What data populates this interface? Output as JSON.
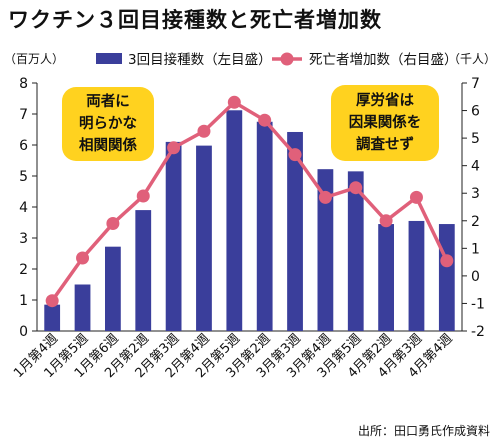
{
  "title": "ワクチン３回目接種数と死亡者増加数",
  "source": "出所：田口勇氏作成資料",
  "annotations": {
    "left": [
      "両者に",
      "明らかな",
      "相関関係"
    ],
    "right": [
      "厚労省は",
      "因果関係を",
      "調査せず"
    ]
  },
  "colors": {
    "bar": "#3a3e9b",
    "line": "#e0607a",
    "note_bg": "#ffd21f"
  },
  "chart_data": {
    "type": "bar",
    "categories": [
      "1月第4週",
      "1月第5週",
      "1月第6週",
      "2月第2週",
      "2月第3週",
      "2月第4週",
      "2月第5週",
      "3月第2週",
      "3月第3週",
      "3月第4週",
      "3月第5週",
      "4月第2週",
      "4月第3週",
      "4月第4週"
    ],
    "left_axis_unit": "（百万人）",
    "right_axis_unit": "（千人）",
    "y_left_lim": [
      0,
      8
    ],
    "y_left_ticks": [
      "0",
      "1",
      "2",
      "3",
      "4",
      "5",
      "6",
      "7",
      "8"
    ],
    "y_right_lim": [
      -2,
      7
    ],
    "y_right_ticks": [
      "-2",
      "-1",
      "0",
      "1",
      "2",
      "3",
      "4",
      "5",
      "6",
      "7"
    ],
    "grid": false,
    "legend_position": "top",
    "series": [
      {
        "name": "3回目接種数（左目盛）",
        "type": "bar",
        "axis": "left",
        "values": [
          0.85,
          1.5,
          2.72,
          3.9,
          6.1,
          5.98,
          7.12,
          6.75,
          6.42,
          5.22,
          5.15,
          3.45,
          3.55,
          3.45
        ]
      },
      {
        "name": "死亡者増加数（右目盛）",
        "type": "line",
        "axis": "right",
        "values": [
          -0.9,
          0.65,
          1.9,
          2.9,
          4.65,
          5.25,
          6.3,
          5.65,
          4.4,
          2.85,
          3.2,
          2.0,
          2.85,
          0.55
        ]
      }
    ]
  }
}
